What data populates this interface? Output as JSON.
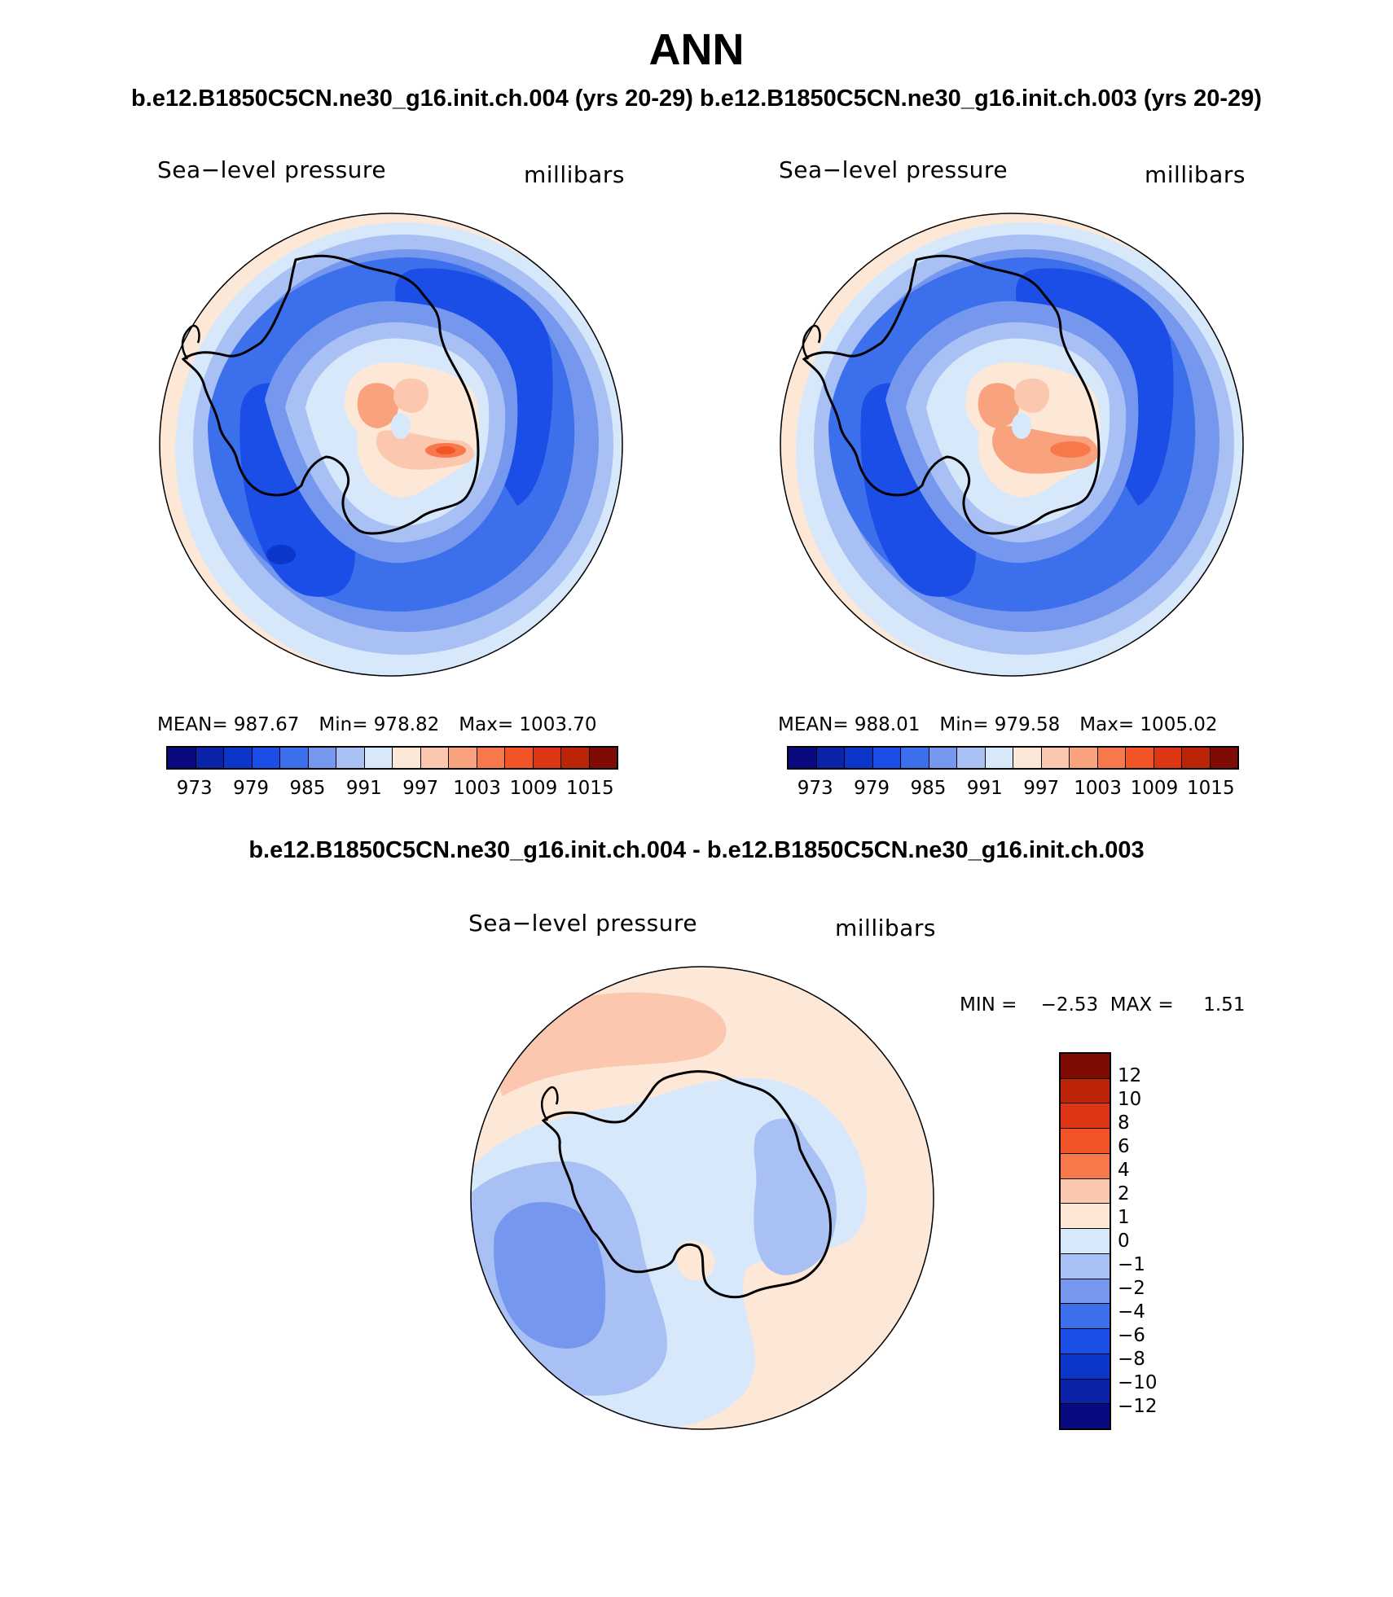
{
  "title": "ANN",
  "cases": {
    "left": "b.e12.B1850C5CN.ne30_g16.init.ch.004 (yrs 20-29)",
    "right": "b.e12.B1850C5CN.ne30_g16.init.ch.003 (yrs 20-29)",
    "diff": "b.e12.B1850C5CN.ne30_g16.init.ch.004 - b.e12.B1850C5CN.ne30_g16.init.ch.003"
  },
  "panels": {
    "left": {
      "variable": "Sea−level pressure",
      "units": "millibars",
      "mean_label": "MEAN=",
      "mean": "987.67",
      "min_label": "Min=",
      "min": "978.82",
      "max_label": "Max=",
      "max": "1003.70"
    },
    "right": {
      "variable": "Sea−level pressure",
      "units": "millibars",
      "mean_label": "MEAN=",
      "mean": "988.01",
      "min_label": "Min=",
      "min": "979.58",
      "max_label": "Max=",
      "max": "1005.02"
    },
    "diff": {
      "variable": "Sea−level pressure",
      "units": "millibars",
      "minmax_label": "MIN =    −2.53  MAX =     1.51"
    }
  },
  "colorbar_main": {
    "ticks": [
      "973",
      "979",
      "985",
      "991",
      "997",
      "1003",
      "1009",
      "1015"
    ],
    "colors": [
      "#0a0a80",
      "#0a23a8",
      "#0b36c9",
      "#1a4ee6",
      "#3b6fec",
      "#7598ee",
      "#a8c0f4",
      "#d8e8fb",
      "#fde8d8",
      "#fbc7ae",
      "#f8a27e",
      "#f7794b",
      "#f25428",
      "#de3514",
      "#bb2407",
      "#7e0b04"
    ]
  },
  "colorbar_diff": {
    "ticks": [
      "12",
      "10",
      "8",
      "6",
      "4",
      "2",
      "1",
      "0",
      "−1",
      "−2",
      "−4",
      "−6",
      "−8",
      "−10",
      "−12"
    ],
    "colors": [
      "#7e0b04",
      "#bb2407",
      "#de3514",
      "#f25428",
      "#f7794b",
      "#fbc7ae",
      "#fde8d8",
      "#d8e8fb",
      "#a8c0f4",
      "#7598ee",
      "#3b6fec",
      "#1a4ee6",
      "#0b36c9",
      "#0a23a8",
      "#0a0a80"
    ]
  }
}
